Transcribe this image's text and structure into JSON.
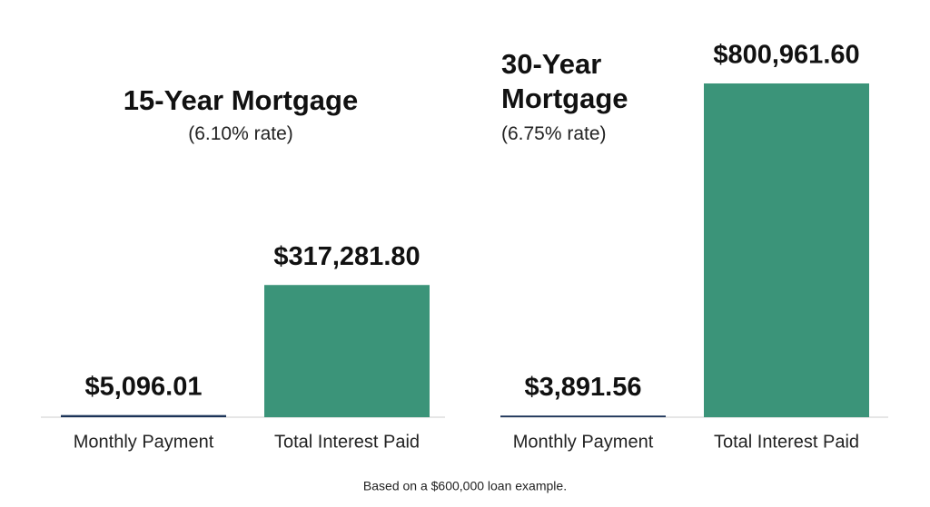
{
  "chart_data": [
    {
      "type": "bar",
      "title": "15-Year Mortgage",
      "subtitle": "(6.10% rate)",
      "categories": [
        "Monthly Payment",
        "Total Interest Paid"
      ],
      "values": [
        5096.01,
        317281.8
      ],
      "value_labels": [
        "$5,096.01",
        "$317,281.80"
      ],
      "colors": [
        "#1b3358",
        "#3b9479"
      ]
    },
    {
      "type": "bar",
      "title": "30-Year Mortgage",
      "subtitle": "(6.75% rate)",
      "categories": [
        "Monthly Payment",
        "Total Interest Paid"
      ],
      "values": [
        3891.56,
        800961.6
      ],
      "value_labels": [
        "$3,891.56",
        "$800,961.60"
      ],
      "colors": [
        "#1b3358",
        "#3b9479"
      ]
    }
  ],
  "footnote": "Based on a $600,000 loan example."
}
